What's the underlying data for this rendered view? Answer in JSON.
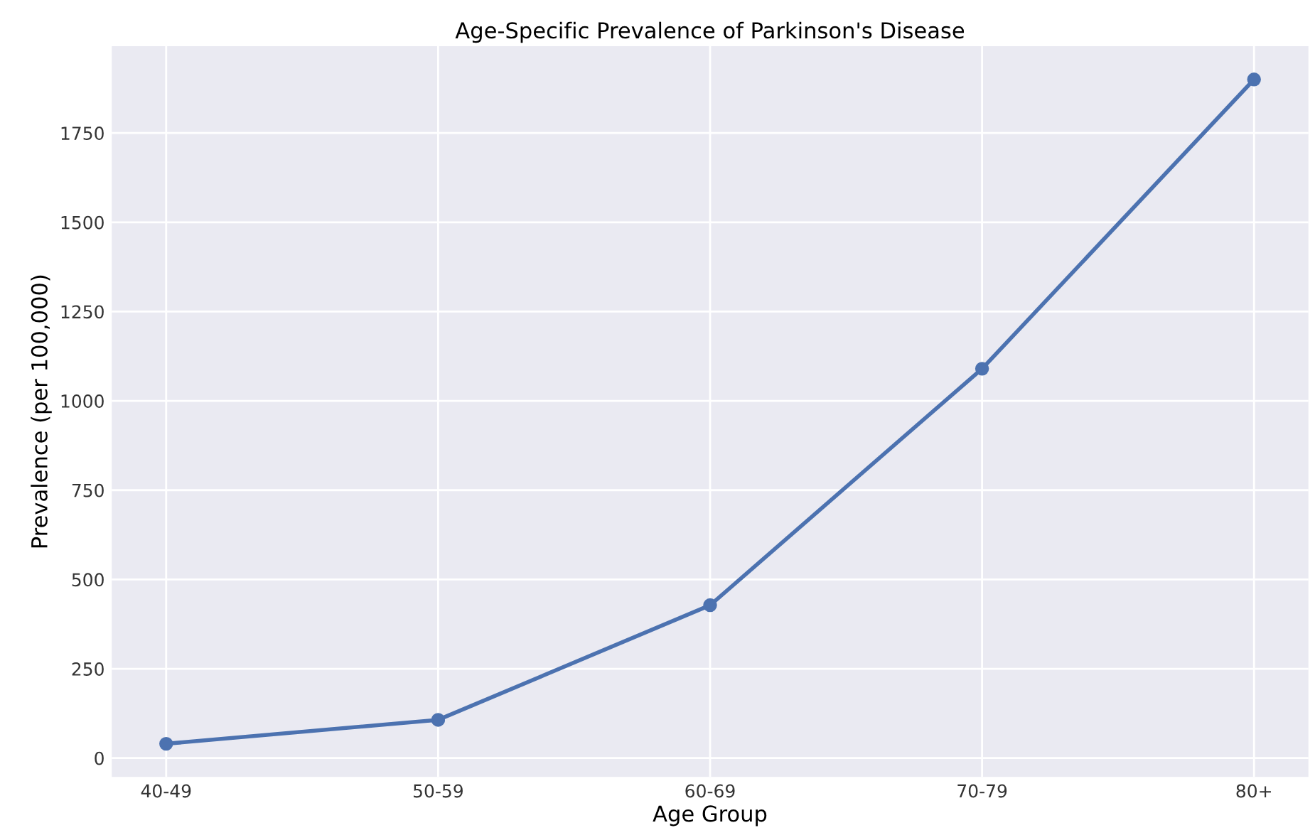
{
  "chart_data": {
    "type": "line",
    "title": "Age-Specific Prevalence of Parkinson's Disease",
    "xlabel": "Age Group",
    "ylabel": "Prevalence (per 100,000)",
    "categories": [
      "40-49",
      "50-59",
      "60-69",
      "70-79",
      "80+"
    ],
    "series": [
      {
        "color": "#4c72b0",
        "values": [
          40,
          107,
          428,
          1090,
          1900
        ]
      }
    ],
    "ylim": [
      -53,
      1993
    ],
    "yticks": [
      0,
      250,
      500,
      750,
      1000,
      1250,
      1500,
      1750
    ],
    "grid": true,
    "marker": "circle",
    "line_style": "solid"
  }
}
